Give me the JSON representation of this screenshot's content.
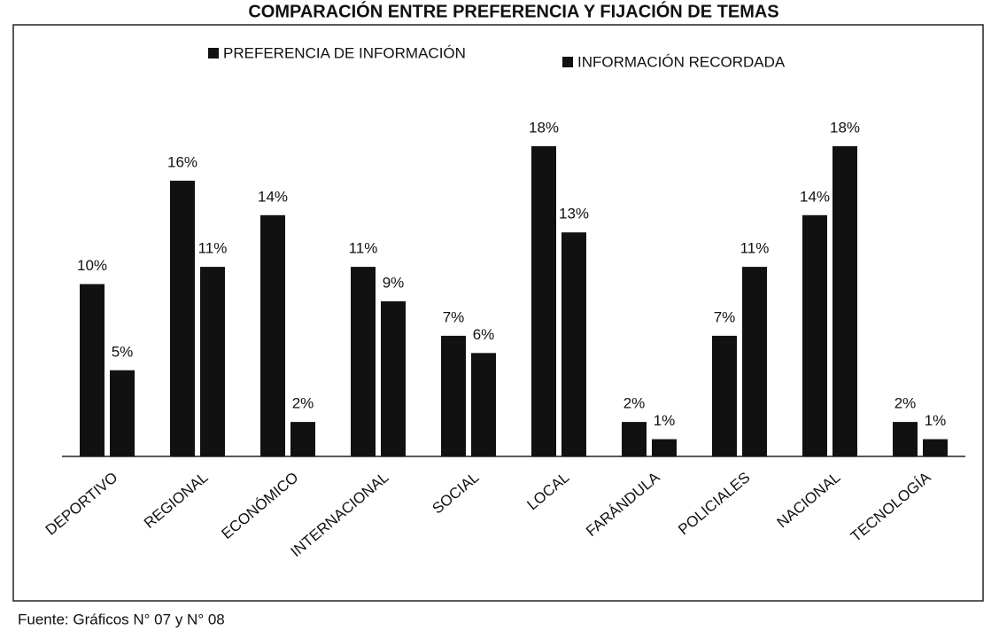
{
  "chart_data": {
    "type": "bar",
    "title": "COMPARACIÓN ENTRE PREFERENCIA Y FIJACIÓN DE TEMAS",
    "categories": [
      "DEPORTIVO",
      "REGIONAL",
      "ECONÓMICO",
      "INTERNACIONAL",
      "SOCIAL",
      "LOCAL",
      "FARÁNDULA",
      "POLICIALES",
      "NACIONAL",
      "TECNOLOGÍA"
    ],
    "series": [
      {
        "name": "PREFERENCIA DE INFORMACIÓN",
        "color": "#111111",
        "values": [
          10,
          16,
          14,
          11,
          7,
          18,
          2,
          7,
          14,
          2
        ],
        "value_labels": [
          "10%",
          "16%",
          "14%",
          "11%",
          "7%",
          "18%",
          "2%",
          "7%",
          "14%",
          "2%"
        ]
      },
      {
        "name": "INFORMACIÓN RECORDADA",
        "color": "#111111",
        "values": [
          5,
          11,
          2,
          9,
          6,
          13,
          1,
          11,
          18,
          1
        ],
        "value_labels": [
          "5%",
          "11%",
          "2%",
          "9%",
          "6%",
          "13%",
          "1%",
          "11%",
          "18%",
          "1%"
        ]
      }
    ],
    "legend": "top",
    "note": "Fuente: Gráficos N° 07 y N° 08"
  }
}
